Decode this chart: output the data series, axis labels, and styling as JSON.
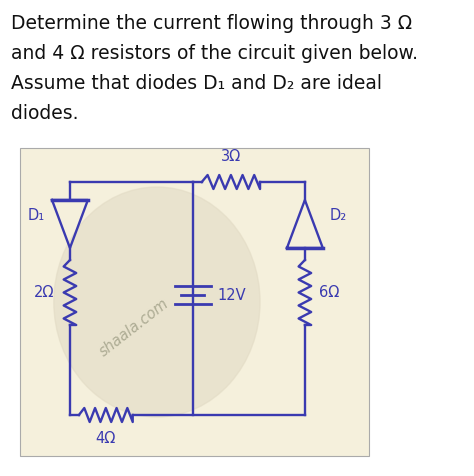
{
  "title_line1": "Determine the current flowing through 3 Ω",
  "title_line2": "and 4 Ω resistors of the circuit given below.",
  "title_line3": "Assume that diodes D₁ and D₂ are ideal",
  "title_line4": "diodes.",
  "bg_color": "#ffffff",
  "circuit_bg": "#f5f0dc",
  "watermark": "shaala.com",
  "labels": {
    "3ohm": "3Ω",
    "4ohm": "4Ω",
    "2ohm": "2Ω",
    "6ohm": "6Ω",
    "12V": "12V",
    "D1": "D₁",
    "D2": "D₂"
  },
  "circuit_color": "#3a3ab0",
  "wire_color": "#3a3ab0",
  "text_color": "#111111",
  "label_color": "#3a3ab0"
}
